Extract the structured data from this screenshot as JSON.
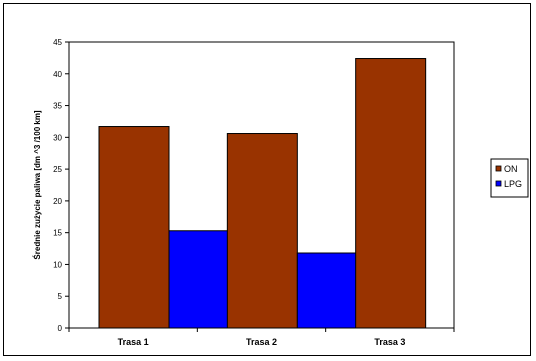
{
  "chart_data": {
    "type": "bar",
    "categories": [
      "Trasa 1",
      "Trasa 2",
      "Trasa 3"
    ],
    "series": [
      {
        "name": "ON",
        "color": "#993300",
        "values": [
          31.7,
          30.6,
          42.4
        ]
      },
      {
        "name": "LPG",
        "color": "#0000FF",
        "values": [
          15.3,
          11.8,
          null
        ]
      }
    ],
    "ylabel": "Średnie zużycie paliwa [dm ^3   /100 km]",
    "ylim": [
      0,
      45
    ],
    "yticks": [
      0,
      5,
      10,
      15,
      20,
      25,
      30,
      35,
      40,
      45
    ],
    "grid": false,
    "legend_position": "right",
    "plot_area_color": "#FFFFFF"
  }
}
